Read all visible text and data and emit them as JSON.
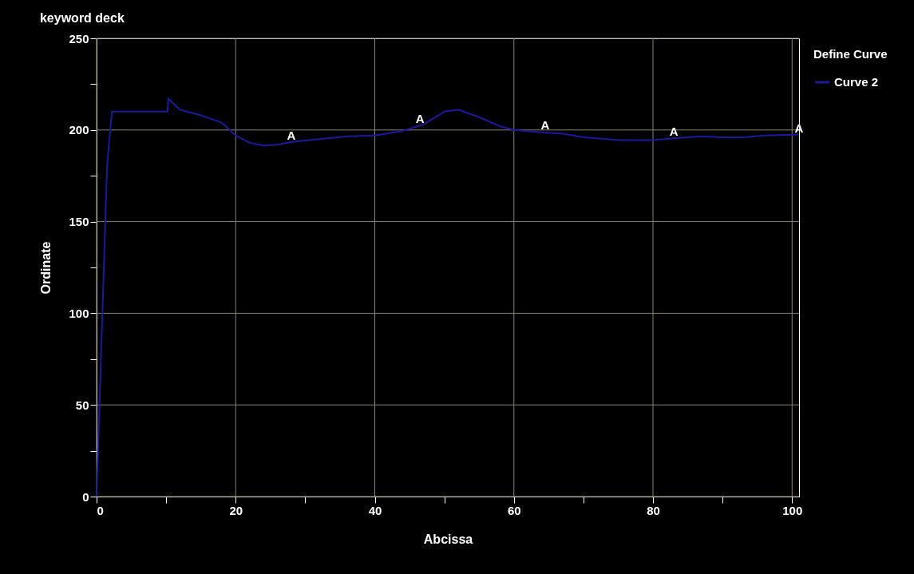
{
  "chart_data": {
    "type": "line",
    "title": "keyword deck",
    "xlabel": "Abcissa",
    "ylabel": "Ordinate",
    "legend_title": "Define Curve",
    "x": [
      0,
      0.5,
      1,
      1.5,
      2.2,
      10.2,
      10.3,
      12,
      15,
      18,
      20,
      22,
      24,
      26,
      28,
      32,
      36,
      40,
      44,
      47,
      50,
      52,
      55,
      58,
      60,
      63,
      67,
      70,
      75,
      80,
      83,
      87,
      90,
      93,
      96,
      101
    ],
    "series": [
      {
        "name": "Curve 2",
        "color": "#1a1aa0",
        "values": [
          0,
          60,
          120,
          180,
          210,
          210,
          217,
          211,
          208,
          204,
          197,
          193,
          191.5,
          192,
          193.5,
          195,
          196.5,
          197,
          199.5,
          203,
          210,
          211,
          207,
          202,
          200,
          199,
          198,
          196,
          194.5,
          194.5,
          195.5,
          196.5,
          196,
          196,
          197,
          197.5
        ]
      }
    ],
    "annotations": [
      {
        "text": "A",
        "x": 28,
        "y": 193.5
      },
      {
        "text": "A",
        "x": 46.5,
        "y": 202.5
      },
      {
        "text": "A",
        "x": 64.5,
        "y": 199
      },
      {
        "text": "A",
        "x": 83,
        "y": 195.5
      },
      {
        "text": "A",
        "x": 101,
        "y": 197.5
      }
    ],
    "xlim": [
      0,
      101
    ],
    "ylim": [
      0,
      250
    ],
    "xticks": [
      0,
      {
        "value": 10,
        "label": null
      },
      20,
      {
        "value": 30,
        "label": null
      },
      40,
      {
        "value": 50,
        "label": null
      },
      60,
      {
        "value": 70,
        "label": null
      },
      80,
      {
        "value": 90,
        "label": null
      },
      100
    ],
    "yticks": [
      0,
      {
        "value": 25,
        "label": null
      },
      50,
      {
        "value": 75,
        "label": null
      },
      100,
      {
        "value": 125,
        "label": null
      },
      150,
      {
        "value": 175,
        "label": null
      },
      200,
      {
        "value": 225,
        "label": null
      },
      250
    ],
    "grid": true,
    "legend": "top right",
    "line_style": "solid",
    "marker": "none"
  }
}
